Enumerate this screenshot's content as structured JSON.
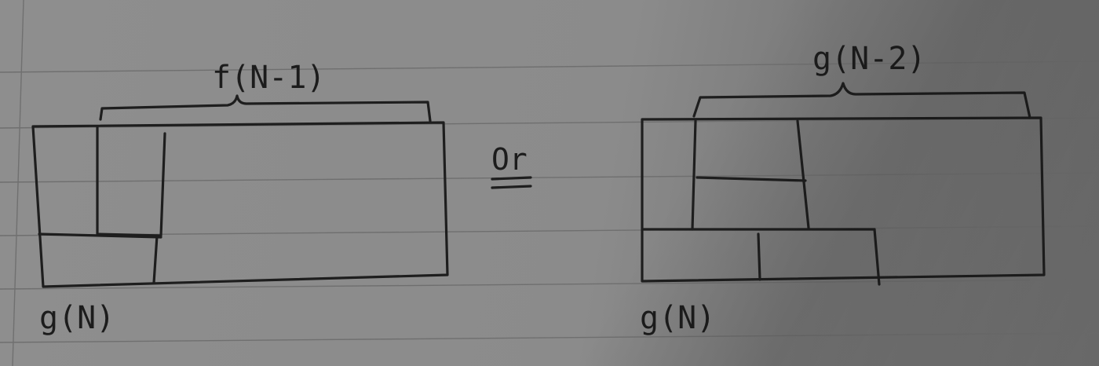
{
  "left_diagram": {
    "top_label": "f(N-1)",
    "bottom_label": "g(N)"
  },
  "separator_word": "Or",
  "right_diagram": {
    "top_label": "g(N-2)",
    "bottom_label": "g(N)"
  }
}
